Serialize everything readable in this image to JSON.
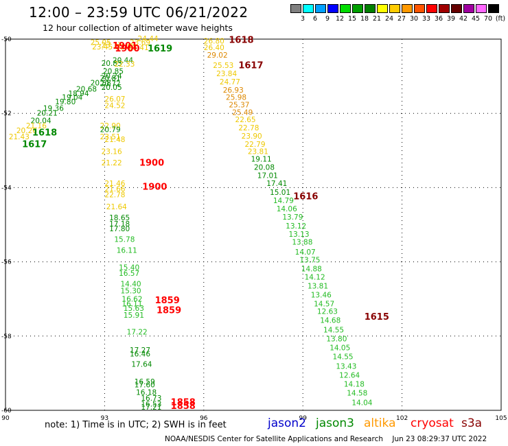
{
  "header": {
    "title": "12:00 – 23:59 UTC 06/21/2022",
    "subtitle": "12 hour collection of altimeter wave heights"
  },
  "colorbar": {
    "labels": [
      "3",
      "6",
      "9",
      "12",
      "15",
      "18",
      "21",
      "24",
      "27",
      "30",
      "33",
      "36",
      "39",
      "42",
      "45",
      "70",
      "(ft)"
    ],
    "colors": [
      "#808080",
      "#00ffff",
      "#00a0ff",
      "#0000ff",
      "#00dd00",
      "#00a000",
      "#008000",
      "#ffff00",
      "#ffcc00",
      "#ff9900",
      "#ff5500",
      "#ff0000",
      "#a00000",
      "#660000",
      "#a000a0",
      "#ff66ff",
      "#000000"
    ]
  },
  "chart_data": {
    "type": "scatter",
    "xlim": [
      90,
      105
    ],
    "ylim": [
      -60,
      -50
    ],
    "xticks": [
      "90",
      "93",
      "96",
      "99",
      "102",
      "105"
    ],
    "yticks": [
      "-50",
      "-52",
      "-54",
      "-56",
      "-58",
      "-60"
    ],
    "grid": true,
    "points": [
      {
        "x": 92.57,
        "y": -50.16,
        "text": "25.05",
        "color": "#eec800"
      },
      {
        "x": 92.62,
        "y": -50.28,
        "text": "23.45",
        "color": "#eec800"
      },
      {
        "x": 92.9,
        "y": -50.23,
        "text": "23.17",
        "color": "#eec800"
      },
      {
        "x": 93.33,
        "y": -50.28,
        "text": "23.54",
        "color": "#eec800"
      },
      {
        "x": 93.76,
        "y": -50.16,
        "text": "23.69",
        "color": "#eec800"
      },
      {
        "x": 94.0,
        "y": -50.06,
        "text": "24.44",
        "color": "#eec800"
      },
      {
        "x": 93.71,
        "y": -50.3,
        "text": "23.41",
        "color": "#eec800"
      },
      {
        "x": 93.24,
        "y": -50.64,
        "text": "20.44",
        "color": "#008800"
      },
      {
        "x": 92.9,
        "y": -50.72,
        "text": "20.83",
        "color": "#008800"
      },
      {
        "x": 93.29,
        "y": -50.74,
        "text": "22.33",
        "color": "#eec800"
      },
      {
        "x": 92.95,
        "y": -50.93,
        "text": "20.85",
        "color": "#008800"
      },
      {
        "x": 92.9,
        "y": -51.06,
        "text": "20.24",
        "color": "#008800"
      },
      {
        "x": 92.86,
        "y": -51.12,
        "text": "20.81",
        "color": "#008800"
      },
      {
        "x": 92.57,
        "y": -51.25,
        "text": "20.58",
        "color": "#008800"
      },
      {
        "x": 92.86,
        "y": -51.27,
        "text": "20.72",
        "color": "#008800"
      },
      {
        "x": 92.9,
        "y": -51.37,
        "text": "20.05",
        "color": "#008800"
      },
      {
        "x": 92.14,
        "y": -51.41,
        "text": "20.68",
        "color": "#008800"
      },
      {
        "x": 91.9,
        "y": -51.53,
        "text": "18.94",
        "color": "#008800"
      },
      {
        "x": 91.71,
        "y": -51.64,
        "text": "19.04",
        "color": "#008800"
      },
      {
        "x": 91.5,
        "y": -51.76,
        "text": "19.80",
        "color": "#008800"
      },
      {
        "x": 91.14,
        "y": -51.93,
        "text": "19.36",
        "color": "#008800"
      },
      {
        "x": 90.95,
        "y": -52.06,
        "text": "20.21",
        "color": "#008800"
      },
      {
        "x": 90.76,
        "y": -52.26,
        "text": "20.04",
        "color": "#008800"
      },
      {
        "x": 90.62,
        "y": -52.4,
        "text": "21.16",
        "color": "#eec800"
      },
      {
        "x": 90.33,
        "y": -52.53,
        "text": "20.26",
        "color": "#eec800"
      },
      {
        "x": 90.1,
        "y": -52.7,
        "text": "21.43",
        "color": "#eec800"
      },
      {
        "x": 93.0,
        "y": -51.68,
        "text": "26.07",
        "color": "#eec800"
      },
      {
        "x": 93.0,
        "y": -51.86,
        "text": "24.52",
        "color": "#eec800"
      },
      {
        "x": 92.86,
        "y": -52.4,
        "text": "22.90",
        "color": "#eec800"
      },
      {
        "x": 92.86,
        "y": -52.5,
        "text": "20.79",
        "color": "#008800"
      },
      {
        "x": 92.86,
        "y": -52.7,
        "text": "23.51",
        "color": "#eec800"
      },
      {
        "x": 93.0,
        "y": -52.77,
        "text": "21.48",
        "color": "#eec800"
      },
      {
        "x": 92.9,
        "y": -53.1,
        "text": "23.16",
        "color": "#eec800"
      },
      {
        "x": 92.9,
        "y": -53.4,
        "text": "21.22",
        "color": "#eec800"
      },
      {
        "x": 93.0,
        "y": -53.96,
        "text": "21.46",
        "color": "#eec800"
      },
      {
        "x": 93.0,
        "y": -54.1,
        "text": "21.66",
        "color": "#eec800"
      },
      {
        "x": 93.0,
        "y": -54.26,
        "text": "22.78",
        "color": "#eec800"
      },
      {
        "x": 93.05,
        "y": -54.58,
        "text": "21.64",
        "color": "#eec800"
      },
      {
        "x": 93.14,
        "y": -54.88,
        "text": "18.65",
        "color": "#008800"
      },
      {
        "x": 93.14,
        "y": -55.05,
        "text": "17.18",
        "color": "#008800"
      },
      {
        "x": 93.14,
        "y": -55.18,
        "text": "17.80",
        "color": "#008800"
      },
      {
        "x": 93.29,
        "y": -55.46,
        "text": "15.78",
        "color": "#22bb22"
      },
      {
        "x": 93.36,
        "y": -55.76,
        "text": "16.11",
        "color": "#22bb22"
      },
      {
        "x": 93.43,
        "y": -56.22,
        "text": "15.40",
        "color": "#22bb22"
      },
      {
        "x": 93.43,
        "y": -56.38,
        "text": "16.57",
        "color": "#22bb22"
      },
      {
        "x": 93.48,
        "y": -56.66,
        "text": "14.40",
        "color": "#22bb22"
      },
      {
        "x": 93.48,
        "y": -56.85,
        "text": "15.30",
        "color": "#22bb22"
      },
      {
        "x": 93.52,
        "y": -57.07,
        "text": "16.62",
        "color": "#22bb22"
      },
      {
        "x": 93.52,
        "y": -57.2,
        "text": "16.11",
        "color": "#22bb22"
      },
      {
        "x": 93.57,
        "y": -57.32,
        "text": "15.63",
        "color": "#22bb22"
      },
      {
        "x": 93.57,
        "y": -57.5,
        "text": "15.91",
        "color": "#22bb22"
      },
      {
        "x": 93.67,
        "y": -57.96,
        "text": "17.22",
        "color": "#22bb22"
      },
      {
        "x": 93.76,
        "y": -58.45,
        "text": "17.27",
        "color": "#008800"
      },
      {
        "x": 93.76,
        "y": -58.55,
        "text": "16.46",
        "color": "#008800"
      },
      {
        "x": 93.81,
        "y": -58.83,
        "text": "17.64",
        "color": "#008800"
      },
      {
        "x": 93.9,
        "y": -59.3,
        "text": "16.59",
        "color": "#008800"
      },
      {
        "x": 93.9,
        "y": -59.38,
        "text": "17.60",
        "color": "#008800"
      },
      {
        "x": 93.95,
        "y": -59.58,
        "text": "16.18",
        "color": "#008800"
      },
      {
        "x": 94.1,
        "y": -59.74,
        "text": "16.73",
        "color": "#008800"
      },
      {
        "x": 94.1,
        "y": -59.9,
        "text": "16.53",
        "color": "#008800"
      },
      {
        "x": 94.1,
        "y": -59.98,
        "text": "17.21",
        "color": "#008800"
      },
      {
        "x": 96.0,
        "y": -50.12,
        "text": "26.80",
        "color": "#eec800"
      },
      {
        "x": 96.0,
        "y": -50.3,
        "text": "26.40",
        "color": "#eec800"
      },
      {
        "x": 96.1,
        "y": -50.5,
        "text": "29.02",
        "color": "#dd8800"
      },
      {
        "x": 96.28,
        "y": -50.78,
        "text": "25.53",
        "color": "#eec800"
      },
      {
        "x": 96.38,
        "y": -51.0,
        "text": "23.84",
        "color": "#eec800"
      },
      {
        "x": 96.48,
        "y": -51.22,
        "text": "24.77",
        "color": "#eec800"
      },
      {
        "x": 96.58,
        "y": -51.44,
        "text": "26.93",
        "color": "#dd8800"
      },
      {
        "x": 96.67,
        "y": -51.64,
        "text": "25.98",
        "color": "#dd8800"
      },
      {
        "x": 96.76,
        "y": -51.84,
        "text": "25.37",
        "color": "#dd8800"
      },
      {
        "x": 96.86,
        "y": -52.04,
        "text": "25.49",
        "color": "#dd8800"
      },
      {
        "x": 96.95,
        "y": -52.24,
        "text": "22.65",
        "color": "#eec800"
      },
      {
        "x": 97.05,
        "y": -52.46,
        "text": "22.78",
        "color": "#eec800"
      },
      {
        "x": 97.14,
        "y": -52.68,
        "text": "23.90",
        "color": "#eec800"
      },
      {
        "x": 97.24,
        "y": -52.9,
        "text": "22.79",
        "color": "#eec800"
      },
      {
        "x": 97.33,
        "y": -53.1,
        "text": "23.81",
        "color": "#eec800"
      },
      {
        "x": 97.43,
        "y": -53.3,
        "text": "19.11",
        "color": "#008800"
      },
      {
        "x": 97.52,
        "y": -53.52,
        "text": "20.08",
        "color": "#008800"
      },
      {
        "x": 97.62,
        "y": -53.74,
        "text": "17.01",
        "color": "#008800"
      },
      {
        "x": 97.9,
        "y": -53.96,
        "text": "17.41",
        "color": "#008800"
      },
      {
        "x": 98.0,
        "y": -54.2,
        "text": "15.01",
        "color": "#008800"
      },
      {
        "x": 98.1,
        "y": -54.42,
        "text": "14.79",
        "color": "#22bb22"
      },
      {
        "x": 98.2,
        "y": -54.64,
        "text": "14.06",
        "color": "#22bb22"
      },
      {
        "x": 98.38,
        "y": -54.86,
        "text": "13.79",
        "color": "#22bb22"
      },
      {
        "x": 98.48,
        "y": -55.1,
        "text": "13.12",
        "color": "#22bb22"
      },
      {
        "x": 98.57,
        "y": -55.32,
        "text": "13.13",
        "color": "#22bb22"
      },
      {
        "x": 98.67,
        "y": -55.54,
        "text": "13.88",
        "color": "#22bb22"
      },
      {
        "x": 98.76,
        "y": -55.8,
        "text": "14.07",
        "color": "#22bb22"
      },
      {
        "x": 98.9,
        "y": -56.02,
        "text": "13.75",
        "color": "#22bb22"
      },
      {
        "x": 98.95,
        "y": -56.26,
        "text": "14.88",
        "color": "#22bb22"
      },
      {
        "x": 99.05,
        "y": -56.48,
        "text": "14.12",
        "color": "#22bb22"
      },
      {
        "x": 99.14,
        "y": -56.72,
        "text": "13.81",
        "color": "#22bb22"
      },
      {
        "x": 99.24,
        "y": -56.96,
        "text": "13.46",
        "color": "#22bb22"
      },
      {
        "x": 99.33,
        "y": -57.2,
        "text": "14.57",
        "color": "#22bb22"
      },
      {
        "x": 99.43,
        "y": -57.4,
        "text": "12.63",
        "color": "#22bb22"
      },
      {
        "x": 99.52,
        "y": -57.64,
        "text": "14.68",
        "color": "#22bb22"
      },
      {
        "x": 99.62,
        "y": -57.9,
        "text": "14.55",
        "color": "#22bb22"
      },
      {
        "x": 99.71,
        "y": -58.14,
        "text": "13.80",
        "color": "#22bb22"
      },
      {
        "x": 99.81,
        "y": -58.38,
        "text": "14.05",
        "color": "#22bb22"
      },
      {
        "x": 99.9,
        "y": -58.62,
        "text": "14.55",
        "color": "#22bb22"
      },
      {
        "x": 100.0,
        "y": -58.88,
        "text": "13.43",
        "color": "#22bb22"
      },
      {
        "x": 100.1,
        "y": -59.12,
        "text": "12.64",
        "color": "#22bb22"
      },
      {
        "x": 100.24,
        "y": -59.36,
        "text": "14.18",
        "color": "#22bb22"
      },
      {
        "x": 100.33,
        "y": -59.6,
        "text": "14.58",
        "color": "#22bb22"
      },
      {
        "x": 100.48,
        "y": -59.86,
        "text": "14.04",
        "color": "#22bb22"
      }
    ],
    "passes": [
      {
        "x": 93.24,
        "y": -50.26,
        "text": "1901",
        "color": "#ff0000"
      },
      {
        "x": 93.31,
        "y": -50.33,
        "text": "1900",
        "color": "#ff0000"
      },
      {
        "x": 94.3,
        "y": -50.33,
        "text": "1619",
        "color": "#008800"
      },
      {
        "x": 90.81,
        "y": -52.6,
        "text": "1618",
        "color": "#008800"
      },
      {
        "x": 90.5,
        "y": -52.91,
        "text": "1617",
        "color": "#008800"
      },
      {
        "x": 96.76,
        "y": -50.1,
        "text": "1618",
        "color": "#880000"
      },
      {
        "x": 97.05,
        "y": -50.79,
        "text": "1617",
        "color": "#880000"
      },
      {
        "x": 94.05,
        "y": -53.41,
        "text": "1900",
        "color": "#ff0000"
      },
      {
        "x": 94.14,
        "y": -54.06,
        "text": "1900",
        "color": "#ff0000"
      },
      {
        "x": 98.71,
        "y": -54.32,
        "text": "1616",
        "color": "#880000"
      },
      {
        "x": 94.52,
        "y": -57.12,
        "text": "1859",
        "color": "#ff0000"
      },
      {
        "x": 94.57,
        "y": -57.38,
        "text": "1859",
        "color": "#ff0000"
      },
      {
        "x": 100.86,
        "y": -57.56,
        "text": "1615",
        "color": "#880000"
      },
      {
        "x": 95.0,
        "y": -59.86,
        "text": "1858",
        "color": "#ff0000"
      },
      {
        "x": 95.0,
        "y": -59.96,
        "text": "1858",
        "color": "#ff0000"
      }
    ]
  },
  "note": "note: 1) Time is in UTC; 2) SWH is in feet",
  "legend": [
    {
      "name": "jason2",
      "color": "#0000cc"
    },
    {
      "name": "jason3",
      "color": "#008800"
    },
    {
      "name": "altika",
      "color": "#ff9900"
    },
    {
      "name": "cryosat",
      "color": "#ff0000"
    },
    {
      "name": "s3a",
      "color": "#880000"
    }
  ],
  "footer": "NOAA/NESDIS Center for Satellite Applications and Research    Jun 23 08:29:37 UTC 2022"
}
